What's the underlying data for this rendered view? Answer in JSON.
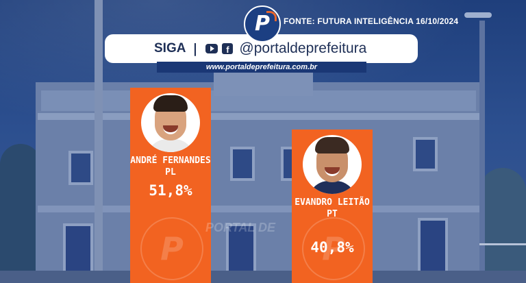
{
  "header": {
    "source": "FONTE: FUTURA INTELIGÊNCIA 16/10/2024",
    "follow_label": "SIGA",
    "separator": "|",
    "handle": "@portaldeprefeitura",
    "website": "www.portaldeprefeitura.com.br",
    "logo_letter": "P"
  },
  "colors": {
    "bar": "#f26321",
    "banner_text": "#1e2f56",
    "site_bg": "#1a3775"
  },
  "icons": [
    "logo-icon",
    "youtube-icon",
    "facebook-icon"
  ],
  "watermark": "PORTAL DE",
  "chart_data": {
    "type": "bar",
    "categories": [
      "ANDRÉ FERNANDES",
      "EVANDRO LEITÃO"
    ],
    "values": [
      51.8,
      40.8
    ],
    "value_labels": [
      "51,8%",
      "40,8%"
    ],
    "parties": [
      "PL",
      "PT"
    ],
    "title": "",
    "xlabel": "",
    "ylabel": "",
    "ylim": [
      0,
      60
    ],
    "legend": "none",
    "grid": false
  }
}
